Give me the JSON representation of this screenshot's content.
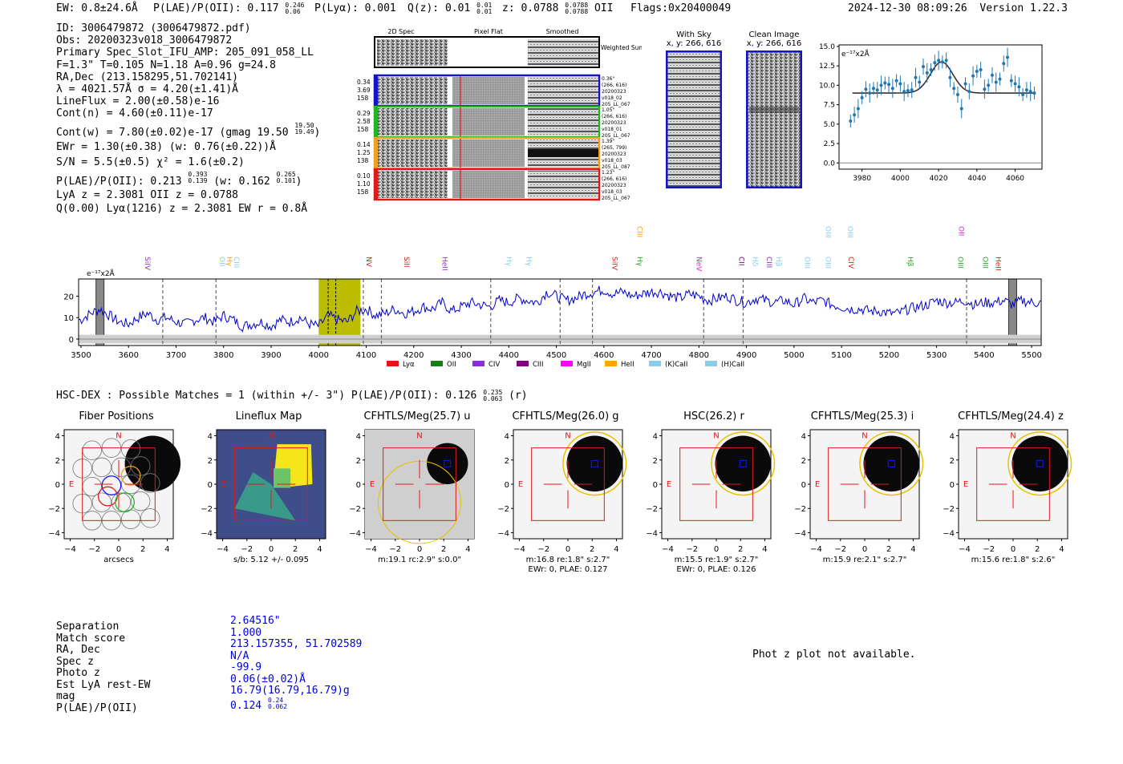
{
  "header": {
    "ew": "EW: 0.8±24.6Å",
    "plae_poii": "P(LAE)/P(OII): 0.117",
    "plae_poii_hi": "0.246",
    "plae_poii_lo": "0.06",
    "plya": "P(Lyα): 0.001",
    "qz": "Q(z): 0.01",
    "qz_hi": "0.01",
    "qz_lo": "0.01",
    "z": "z: 0.0788",
    "z_hi": "0.0788",
    "z_lo": "0.0788",
    "z_line": "OII",
    "flags": "Flags:0x20400049",
    "timestamp": "2024-12-30 08:09:26",
    "version": "Version 1.22.3"
  },
  "info": {
    "id": "ID: 3006479872 (3006479872.pdf)",
    "obs": "Obs: 20200323v018_3006479872",
    "primary": "Primary Spec_Slot_IFU_AMP: 205_091_058_LL",
    "params": "F=1.3\"  T=0.105  N=1.18  A=0.96  g=24.8",
    "radec": "RA,Dec (213.158295,51.702141)",
    "lambda": "λ = 4021.57Å  σ = 4.20(±1.41)Å",
    "lineflux": "LineFlux = 2.00(±0.58)e-16",
    "cont_n": "Cont(n) = 4.60(±0.11)e-17",
    "cont_w": "Cont(w) = 7.80(±0.02)e-17 (gmag 19.50",
    "gmag_hi": "19.50",
    "gmag_lo": "19.49",
    "ewr": "EWr = 1.30(±0.38) (w: 0.76(±0.22))Å",
    "sn": "S/N = 5.5(±0.5)  χ² = 1.6(±0.2)",
    "plae": "P(LAE)/P(OII): 0.213",
    "plae_hi": "0.393",
    "plae_lo": "0.139",
    "plae_w": "(w: 0.162",
    "plae_w_hi": "0.265",
    "plae_w_lo": "0.101",
    "lya": "LyA z = 2.3081  OII z = 0.0788",
    "q": "Q(0.00) Lyα(1216) z = 2.3081  EW r = 0.8Å"
  },
  "cutouts": {
    "col_titles": [
      "2D Spec",
      "Pixel Flat",
      "Smoothed"
    ],
    "weighted_sum": "Weighted Sum",
    "rows": [
      {
        "left": [
          "0.34",
          "3.69",
          "158"
        ],
        "right": [
          "0.36\"",
          "(266, 616)",
          "20200323",
          "v018_02",
          "205_LL_067"
        ],
        "color": "#1515c8"
      },
      {
        "left": [
          "0.29",
          "2.58",
          "158"
        ],
        "right": [
          "1.05\"",
          "(266, 616)",
          "20200323",
          "v018_01",
          "205_LL_067"
        ],
        "color": "#22b322"
      },
      {
        "left": [
          "0.14",
          "1.25",
          "138"
        ],
        "right": [
          "1.39\"",
          "(265, 799)",
          "20200323",
          "v018_03",
          "205_LL_087"
        ],
        "color": "#f0a020"
      },
      {
        "left": [
          "0.10",
          "1.10",
          "158"
        ],
        "right": [
          "1.23\"",
          "(266, 616)",
          "20200323",
          "v018_03",
          "205_LL_067"
        ],
        "color": "#e01818"
      }
    ]
  },
  "sky_panel": {
    "title": "With Sky",
    "coords": "x, y: 266, 616"
  },
  "clean_panel": {
    "title": "Clean Image",
    "coords": "x, y: 266, 616"
  },
  "fit_chart": {
    "type": "scatter",
    "unit_label": "e⁻¹⁷x2Å",
    "xlim": [
      3968,
      4074
    ],
    "ylim": [
      -0.8,
      15.2
    ],
    "xticks": [
      "3980",
      "4000",
      "4020",
      "4040",
      "4060"
    ],
    "yticks": [
      "0.0",
      "2.5",
      "5.0",
      "7.5",
      "10.0",
      "12.5",
      "15.0"
    ],
    "x": [
      3974,
      3976,
      3978,
      3980,
      3982,
      3984,
      3986,
      3988,
      3990,
      3992,
      3994,
      3996,
      3998,
      4000,
      4002,
      4004,
      4006,
      4008,
      4010,
      4012,
      4014,
      4016,
      4018,
      4020,
      4022,
      4024,
      4026,
      4028,
      4030,
      4032,
      4034,
      4036,
      4038,
      4040,
      4042,
      4044,
      4046,
      4048,
      4050,
      4052,
      4054,
      4056,
      4058,
      4060,
      4062,
      4064,
      4066,
      4068,
      4070
    ],
    "y": [
      5.4,
      6.2,
      7.0,
      8.4,
      9.5,
      9.0,
      9.6,
      9.4,
      10.0,
      10.3,
      10.1,
      9.6,
      10.6,
      10.2,
      9.2,
      9.3,
      9.4,
      11.0,
      10.4,
      12.4,
      11.6,
      12.0,
      12.9,
      13.2,
      13.0,
      13.2,
      11.0,
      9.6,
      8.8,
      7.0,
      10.2,
      9.2,
      11.2,
      11.8,
      12.0,
      9.5,
      10.0,
      11.3,
      10.4,
      10.8,
      12.8,
      13.6,
      10.6,
      10.2,
      9.8,
      8.8,
      9.4,
      9.2,
      9.0
    ],
    "fit_line": {
      "baseline": 9.0,
      "peak_x": 4021.57,
      "amplitude": 4.0,
      "sigma": 4.2
    }
  },
  "spectrum": {
    "type": "line",
    "unit_label": "e⁻¹⁷x2Å",
    "xlim": [
      3495,
      5520
    ],
    "ylim": [
      -3,
      28
    ],
    "xticks": [
      "3500",
      "3600",
      "3700",
      "3800",
      "3900",
      "4000",
      "4100",
      "4200",
      "4300",
      "4400",
      "4500",
      "4600",
      "4700",
      "4800",
      "4900",
      "5000",
      "5100",
      "5200",
      "5300",
      "5400",
      "5500"
    ],
    "yticks": [
      "0",
      "10",
      "20"
    ],
    "anchors_x": [
      3500,
      3520,
      3540,
      3560,
      3580,
      3600,
      3620,
      3640,
      3660,
      3680,
      3700,
      3720,
      3740,
      3760,
      3780,
      3800,
      3820,
      3840,
      3860,
      3880,
      3900,
      3920,
      3940,
      3960,
      3980,
      4000,
      4020,
      4040,
      4060,
      4080,
      4100,
      4120,
      4140,
      4160,
      4180,
      4200,
      4220,
      4240,
      4260,
      4280,
      4300,
      4320,
      4340,
      4360,
      4380,
      4400,
      4420,
      4440,
      4460,
      4480,
      4500,
      4520,
      4540,
      4560,
      4580,
      4600,
      4620,
      4640,
      4660,
      4680,
      4700,
      4720,
      4740,
      4760,
      4780,
      4800,
      4820,
      4840,
      4860,
      4880,
      4900,
      4920,
      4940,
      4960,
      4980,
      5000,
      5020,
      5040,
      5060,
      5080,
      5100,
      5120,
      5140,
      5160,
      5180,
      5200,
      5220,
      5240,
      5260,
      5280,
      5300,
      5320,
      5340,
      5360,
      5380,
      5400,
      5420,
      5440,
      5460,
      5480,
      5500,
      5520
    ],
    "anchors_y": [
      9,
      12,
      14,
      11,
      8,
      7,
      10,
      12,
      9,
      10,
      8,
      7,
      9,
      10,
      8,
      11,
      9,
      6,
      7,
      8,
      6,
      9,
      8,
      10,
      7,
      6,
      11,
      9,
      8,
      13,
      14,
      11,
      12,
      14,
      12,
      13,
      15,
      14,
      17,
      13,
      15,
      17,
      16,
      15,
      18,
      17,
      19,
      18,
      17,
      22,
      20,
      18,
      19,
      21,
      22,
      23,
      21,
      22,
      20,
      21,
      22,
      22,
      20,
      19,
      21,
      20,
      18,
      19,
      20,
      18,
      17,
      19,
      18,
      17,
      18,
      16,
      19,
      17,
      18,
      16,
      15,
      14,
      14,
      13,
      13,
      12,
      12,
      14,
      15,
      16,
      18,
      17,
      17,
      18,
      16,
      17,
      17,
      18,
      16,
      18,
      17,
      17
    ],
    "sky_band": [
      4000,
      4088
    ],
    "sky_dashes": [
      4020,
      4036
    ],
    "dashed_lines": [
      3672,
      3784,
      4094,
      4132,
      4362,
      4508,
      4576,
      4810,
      4893,
      5363
    ],
    "masked": [
      3540,
      5460
    ],
    "line_labels": [
      {
        "x": 3630,
        "label": "SiIV",
        "color": "#8a2be2"
      },
      {
        "x": 3787,
        "label": "OII",
        "color": "#87ceeb"
      },
      {
        "x": 3802,
        "label": "Hγ",
        "color": "#ffa500"
      },
      {
        "x": 3817,
        "label": "CIII",
        "color": "#87ceeb"
      },
      {
        "x": 4096,
        "label": "NV",
        "color": "#e01818"
      },
      {
        "x": 4175,
        "label": "SiII",
        "color": "#e01818"
      },
      {
        "x": 4255,
        "label": "HeII",
        "color": "#8a2be2"
      },
      {
        "x": 4390,
        "label": "Hγ",
        "color": "#87ceeb"
      },
      {
        "x": 4432,
        "label": "Hγ",
        "color": "#87ceeb"
      },
      {
        "x": 4613,
        "label": "SiIV",
        "color": "#e01818"
      },
      {
        "x": 4665,
        "label": "CIII",
        "color": "#ffa500",
        "high": true
      },
      {
        "x": 4665,
        "label": "Hγ",
        "color": "#2ca02c"
      },
      {
        "x": 4790,
        "label": "NeV",
        "color": "#e020e0"
      },
      {
        "x": 4880,
        "label": "CII",
        "color": "#8b008b"
      },
      {
        "x": 4908,
        "label": "Hδ",
        "color": "#87ceeb"
      },
      {
        "x": 4938,
        "label": "CIII",
        "color": "#8a2be2"
      },
      {
        "x": 4958,
        "label": "Hβ",
        "color": "#87ceeb"
      },
      {
        "x": 5018,
        "label": "OIII",
        "color": "#87ceeb"
      },
      {
        "x": 5062,
        "label": "OIII",
        "color": "#87ceeb"
      },
      {
        "x": 5062,
        "label": "OIII",
        "color": "#87ceeb",
        "high": true
      },
      {
        "x": 5108,
        "label": "OIII",
        "color": "#87ceeb",
        "high": true
      },
      {
        "x": 5110,
        "label": "CIV",
        "color": "#e01818"
      },
      {
        "x": 5235,
        "label": "Hβ",
        "color": "#2ca02c"
      },
      {
        "x": 5340,
        "label": "OIII",
        "color": "#2ca02c"
      },
      {
        "x": 5393,
        "label": "OIII",
        "color": "#2ca02c"
      },
      {
        "x": 5420,
        "label": "HeII",
        "color": "#e01818"
      },
      {
        "x": 5342,
        "label": "OII",
        "color": "#e020e0",
        "high": true
      }
    ],
    "legend": [
      {
        "label": "Lyα",
        "color": "#e01818"
      },
      {
        "label": "OII",
        "color": "#138013"
      },
      {
        "label": "CIV",
        "color": "#8a2be2"
      },
      {
        "label": "CIII",
        "color": "#800080"
      },
      {
        "label": "MgII",
        "color": "#ff00ff"
      },
      {
        "label": "HeII",
        "color": "#ffa500"
      },
      {
        "label": "(K)CaII",
        "color": "#87ceeb"
      },
      {
        "label": "(H)CaII",
        "color": "#87ceeb"
      }
    ]
  },
  "hsc": {
    "summary": "HSC-DEX : Possible Matches = 1 (within +/- 3\")  P(LAE)/P(OII): 0.126",
    "summary_hi": "0.235",
    "summary_lo": "0.063",
    "summary_band": "(r)",
    "axis_ticks": [
      "4",
      "2",
      "0",
      "−2",
      "−4"
    ],
    "x_ticks": [
      "−4",
      "−2",
      "0",
      "2",
      "4"
    ],
    "north": "N",
    "east": "E",
    "panels": [
      {
        "title": "Fiber Positions",
        "caption1": "arcsecs",
        "caption2": ""
      },
      {
        "title": "Lineflux Map",
        "caption1": "s/b: 5.12 +/- 0.095",
        "caption2": ""
      },
      {
        "title": "CFHTLS/Meg(25.7) u",
        "caption1": "m:19.1 rc:2.9\"  s:0.0\"",
        "caption2": ""
      },
      {
        "title": "CFHTLS/Meg(26.0) g",
        "caption1": "m:16.8  re:1.8\"  s:2.7\"",
        "caption2": "EWr: 0, PLAE: 0.127"
      },
      {
        "title": "HSC(26.2) r",
        "caption1": "m:15.5  re:1.9\"  s:2.7\"",
        "caption2": "EWr: 0, PLAE: 0.126"
      },
      {
        "title": "CFHTLS/Meg(25.3) i",
        "caption1": "m:15.9  re:2.1\"  s:2.7\"",
        "caption2": ""
      },
      {
        "title": "CFHTLS/Meg(24.4) z",
        "caption1": "m:15.6  re:1.8\"  s:2.6\"",
        "caption2": ""
      }
    ]
  },
  "match_table": {
    "labels": [
      "Separation",
      "Match score",
      "RA, Dec",
      "Spec z",
      "Photo z",
      "Est LyA rest-EW",
      "mag",
      "P(LAE)/P(OII)"
    ],
    "values": [
      "2.64516\"",
      "1.000",
      "213.157355, 51.702589",
      "N/A",
      "-99.9",
      "0.06(±0.02)Å",
      "16.79(16.79,16.79)g",
      "0.124"
    ],
    "plae_hi": "0.24",
    "plae_lo": "0.062"
  },
  "phot_z_message": "Phot z plot not available."
}
